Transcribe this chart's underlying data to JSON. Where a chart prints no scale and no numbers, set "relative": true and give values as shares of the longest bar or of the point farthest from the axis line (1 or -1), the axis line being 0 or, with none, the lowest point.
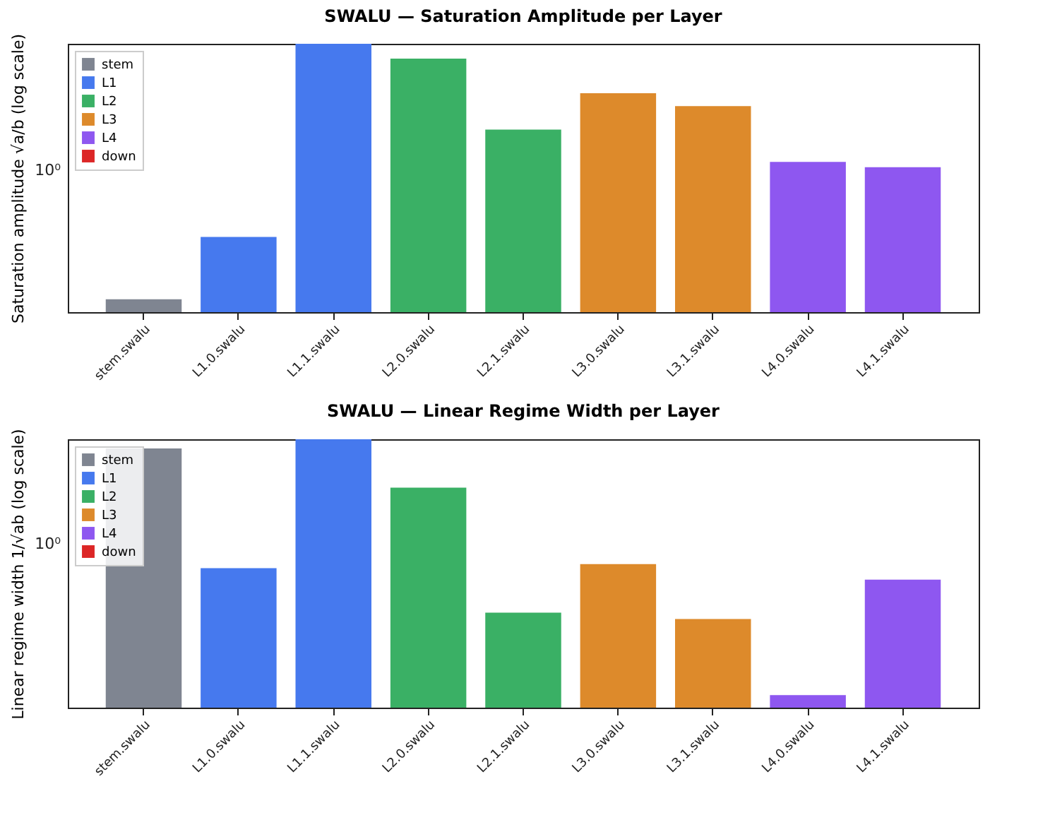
{
  "chart_data": [
    {
      "type": "bar",
      "title": "SWALU — Saturation Amplitude per Layer",
      "ylabel": "Saturation amplitude √a/b (log scale)",
      "relative": true,
      "legend": "top left",
      "annotations": [
        "10⁰"
      ],
      "categories": [
        "stem.swalu",
        "L1.0.swalu",
        "L1.1.swalu",
        "L2.0.swalu",
        "L2.1.swalu",
        "L3.0.swalu",
        "L3.1.swalu",
        "L4.0.swalu",
        "L4.1.swalu"
      ],
      "series": [
        {
          "name": "stem",
          "color": "#7f8591",
          "values": [
            0.048,
            null,
            null,
            null,
            null,
            null,
            null,
            null,
            null
          ]
        },
        {
          "name": "L1",
          "color": "#4679ee",
          "values": [
            null,
            0.28,
            1,
            null,
            null,
            null,
            null,
            null,
            null
          ]
        },
        {
          "name": "L2",
          "color": "#3ab065",
          "values": [
            null,
            null,
            null,
            0.945,
            0.68,
            null,
            null,
            null,
            null
          ]
        },
        {
          "name": "L3",
          "color": "#dd8a2b",
          "values": [
            null,
            null,
            null,
            null,
            null,
            0.816,
            0.768,
            null,
            null
          ]
        },
        {
          "name": "L4",
          "color": "#8e57f0",
          "values": [
            null,
            null,
            null,
            null,
            null,
            null,
            null,
            0.56,
            0.54
          ]
        },
        {
          "name": "down",
          "color": "#dc2626",
          "values": [
            null,
            null,
            null,
            null,
            null,
            null,
            null,
            null,
            null
          ]
        }
      ]
    },
    {
      "type": "bar",
      "title": "SWALU — Linear Regime Width per Layer",
      "ylabel": "Linear regime width 1/√ab (log scale)",
      "relative": true,
      "legend": "top left",
      "annotations": [
        "10⁰"
      ],
      "categories": [
        "stem.swalu",
        "L1.0.swalu",
        "L1.1.swalu",
        "L2.0.swalu",
        "L2.1.swalu",
        "L3.0.swalu",
        "L3.1.swalu",
        "L4.0.swalu",
        "L4.1.swalu"
      ],
      "series": [
        {
          "name": "stem",
          "color": "#7f8591",
          "values": [
            0.966,
            null,
            null,
            null,
            null,
            null,
            null,
            null,
            null
          ]
        },
        {
          "name": "L1",
          "color": "#4679ee",
          "values": [
            null,
            0.52,
            1,
            null,
            null,
            null,
            null,
            null,
            null
          ]
        },
        {
          "name": "L2",
          "color": "#3ab065",
          "values": [
            null,
            null,
            null,
            0.82,
            0.354,
            null,
            null,
            null,
            null
          ]
        },
        {
          "name": "L3",
          "color": "#dd8a2b",
          "values": [
            null,
            null,
            null,
            null,
            null,
            0.535,
            0.33,
            null,
            null
          ]
        },
        {
          "name": "L4",
          "color": "#8e57f0",
          "values": [
            null,
            null,
            null,
            null,
            null,
            null,
            null,
            0.047,
            0.477
          ]
        },
        {
          "name": "down",
          "color": "#dc2626",
          "values": [
            null,
            null,
            null,
            null,
            null,
            null,
            null,
            null,
            null
          ]
        }
      ]
    }
  ]
}
